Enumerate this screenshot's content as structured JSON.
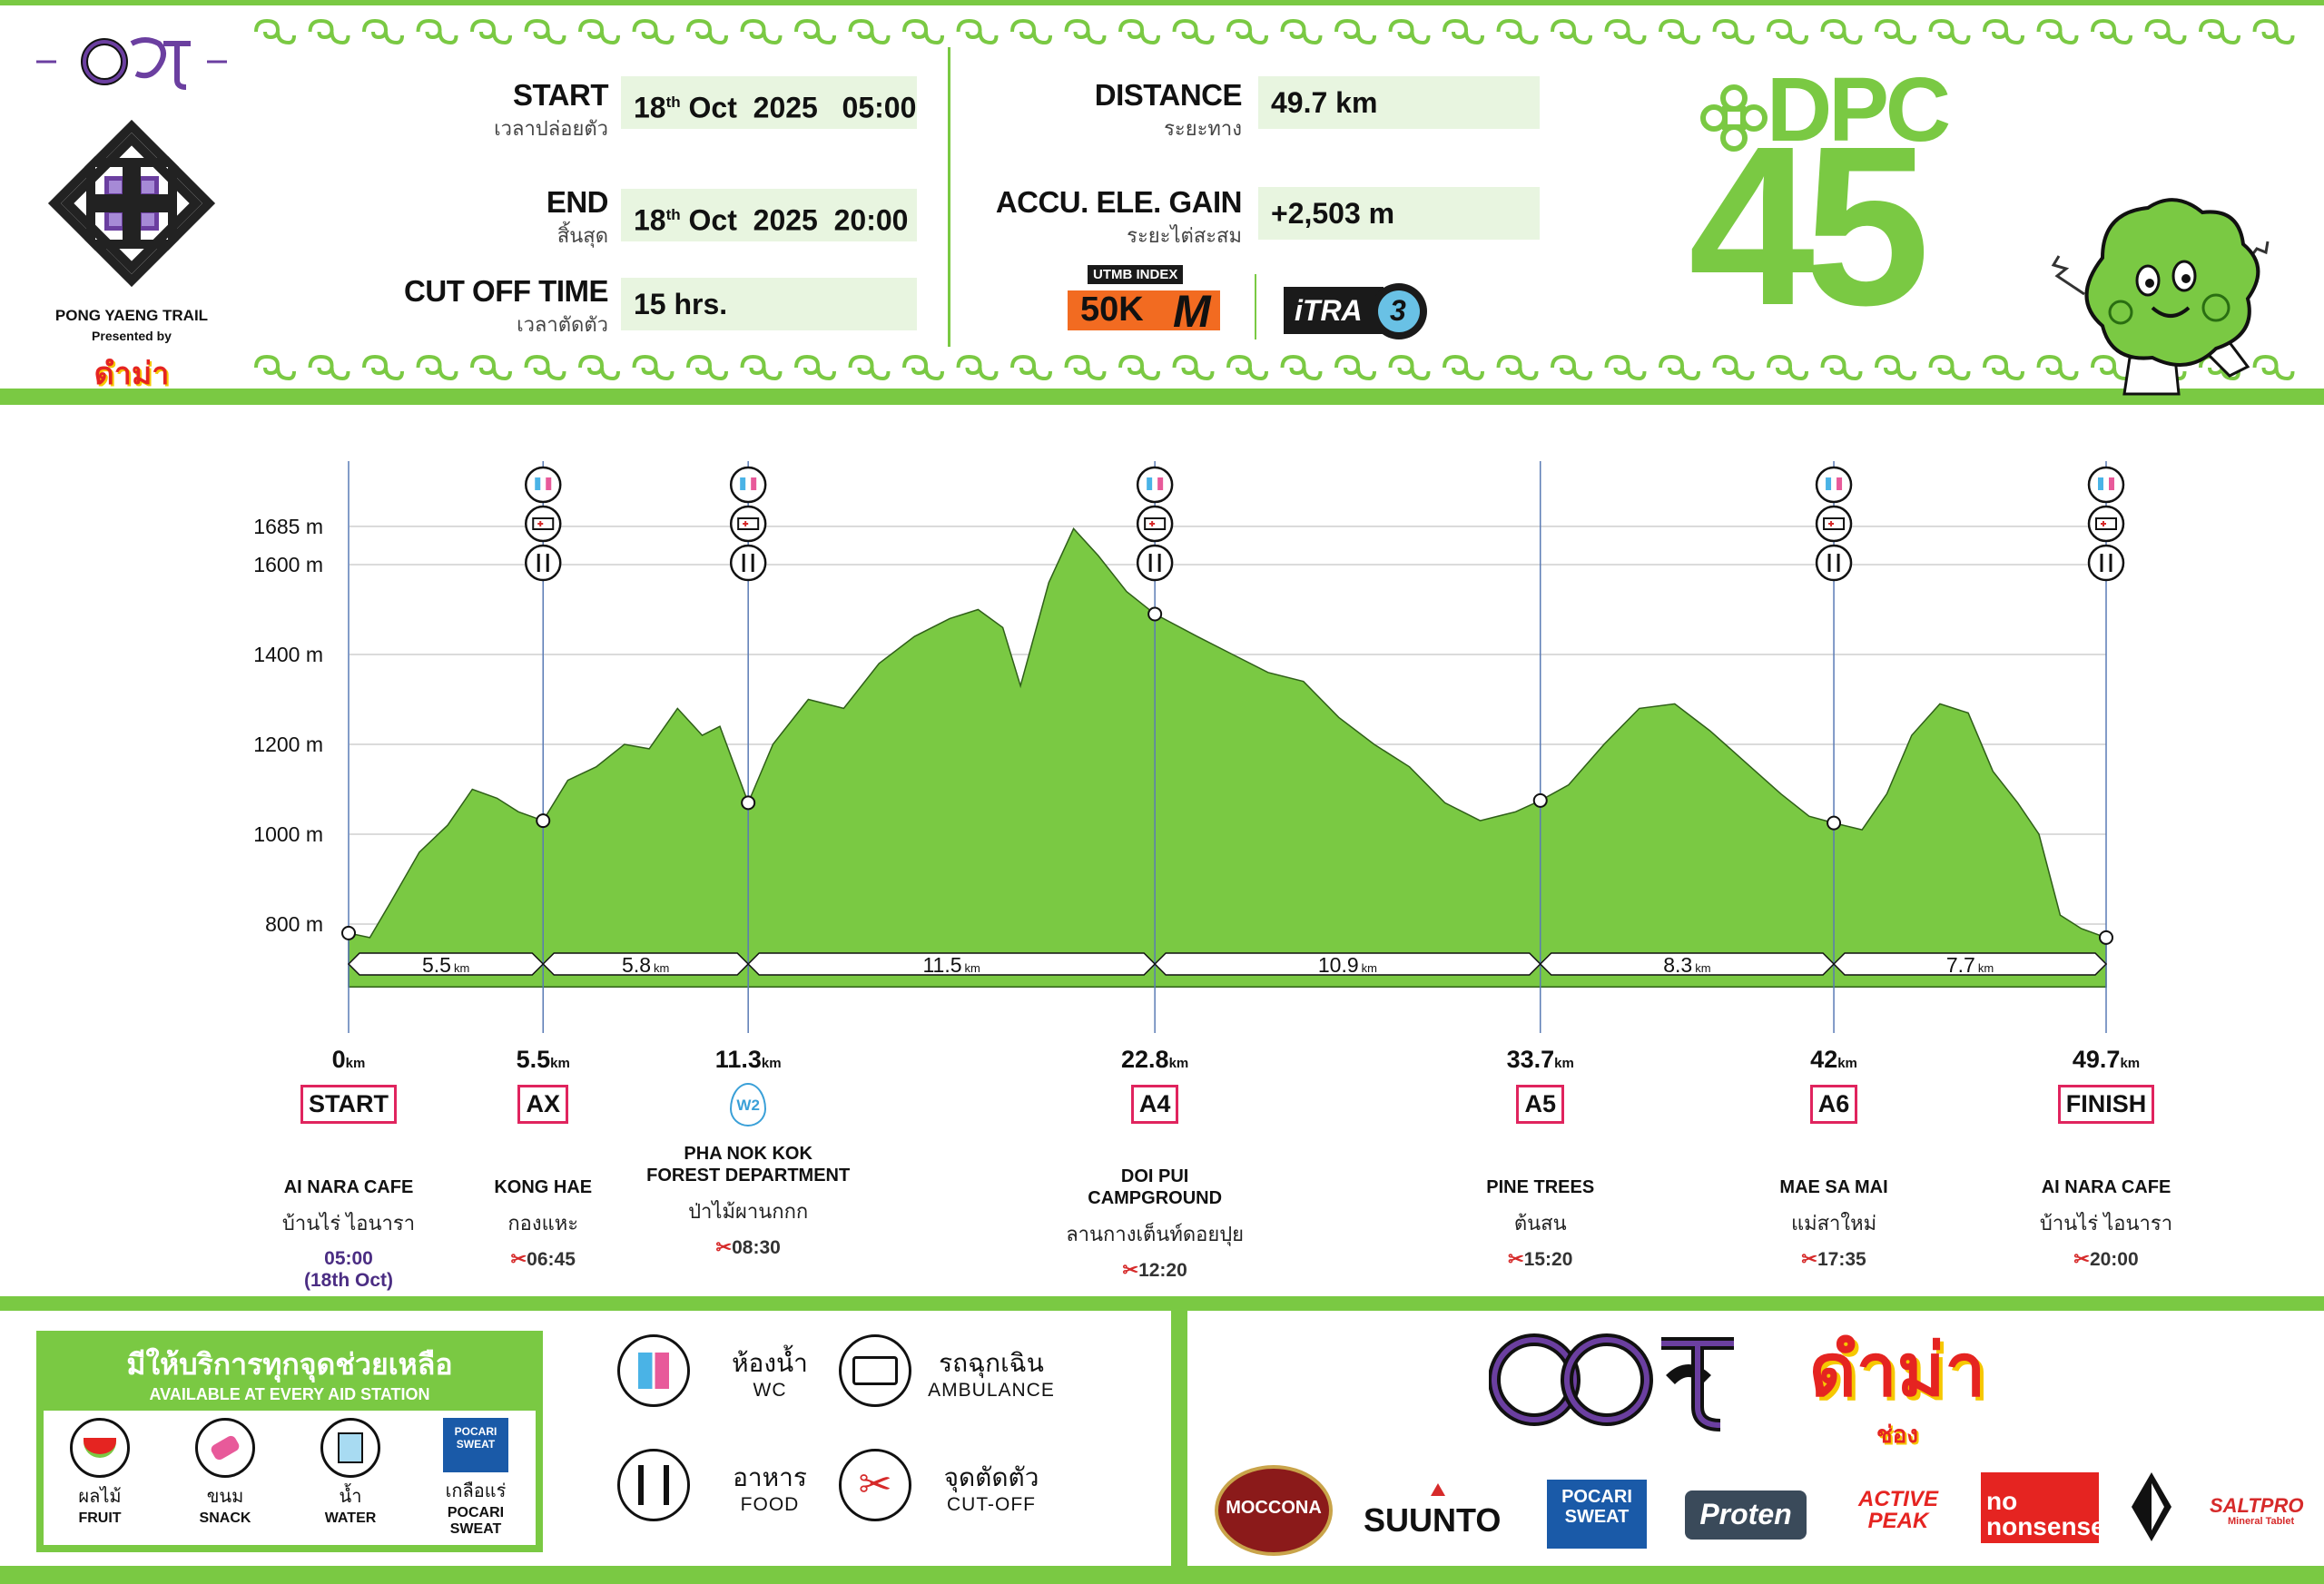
{
  "event": {
    "logo_text": "PONG YAENG TRAIL",
    "presented_by": "Presented by",
    "brand_script": "ดำม่า",
    "race_code_top": "DPC",
    "race_code_num": "45"
  },
  "info": {
    "start": {
      "label": "START",
      "label_th": "เวลาปล่อยตัว",
      "day": "18",
      "sup": "th",
      "rest": "Oct  2025   05:00"
    },
    "end": {
      "label": "END",
      "label_th": "สิ้นสุด",
      "day": "18",
      "sup": "th",
      "rest": "Oct  2025  20:00"
    },
    "cutoff": {
      "label": "CUT OFF TIME",
      "label_th": "เวลาตัดตัว",
      "value": "15 hrs."
    },
    "distance": {
      "label": "DISTANCE",
      "label_th": "ระยะทาง",
      "value": "49.7 km"
    },
    "gain": {
      "label": "ACCU. ELE. GAIN",
      "label_th": "ระยะไต่สะสม",
      "value": "+2,503 m"
    },
    "utmb_top": "UTMB INDEX",
    "utmb_val": "50K",
    "utmb_m": "M",
    "itra_text": "iTRA",
    "itra_num": "3"
  },
  "colors": {
    "green": "#7ac943",
    "dark_green": "#3f7f1f",
    "pink": "#e0245e",
    "purple": "#6b3fa0",
    "red": "#d62a2a"
  },
  "chart_data": {
    "type": "area",
    "xlabel": "",
    "ylabel": "",
    "xlim": [
      0,
      49.7
    ],
    "ylim": [
      660,
      1750
    ],
    "yticks": [
      800,
      1000,
      1200,
      1400,
      1600,
      1685
    ],
    "ytick_labels": [
      "800 m",
      "1000 m",
      "1200 m",
      "1400 m",
      "1600 m",
      "1685 m"
    ],
    "profile_x": [
      0,
      0.6,
      1.2,
      2.0,
      2.8,
      3.5,
      4.2,
      4.8,
      5.5,
      6.2,
      7.0,
      7.8,
      8.5,
      9.3,
      10.0,
      10.5,
      11.3,
      12.0,
      13.0,
      14.0,
      15.0,
      16.0,
      17.0,
      17.8,
      18.5,
      19.0,
      19.8,
      20.5,
      21.2,
      22.0,
      22.8,
      24.0,
      25.0,
      26.0,
      27.0,
      28.0,
      29.0,
      30.0,
      31.0,
      32.0,
      33.0,
      33.7,
      34.5,
      35.5,
      36.5,
      37.5,
      38.5,
      39.5,
      40.5,
      41.3,
      42.0,
      42.8,
      43.5,
      44.2,
      45.0,
      45.8,
      46.5,
      47.2,
      47.8,
      48.4,
      49.0,
      49.7
    ],
    "profile_y": [
      780,
      770,
      850,
      960,
      1020,
      1100,
      1080,
      1050,
      1030,
      1120,
      1150,
      1200,
      1190,
      1280,
      1220,
      1240,
      1070,
      1200,
      1300,
      1280,
      1380,
      1440,
      1480,
      1500,
      1460,
      1330,
      1560,
      1680,
      1620,
      1540,
      1490,
      1440,
      1400,
      1360,
      1340,
      1260,
      1200,
      1150,
      1070,
      1030,
      1050,
      1075,
      1110,
      1200,
      1280,
      1290,
      1230,
      1160,
      1090,
      1040,
      1025,
      1010,
      1090,
      1220,
      1290,
      1270,
      1140,
      1070,
      1000,
      820,
      790,
      770
    ],
    "checkpoints": [
      {
        "km": 0,
        "elev": 780
      },
      {
        "km": 5.5,
        "elev": 1030
      },
      {
        "km": 11.3,
        "elev": 1070
      },
      {
        "km": 22.8,
        "elev": 1490
      },
      {
        "km": 33.7,
        "elev": 1075
      },
      {
        "km": 42,
        "elev": 1025
      },
      {
        "km": 49.7,
        "elev": 770
      }
    ],
    "segments": [
      {
        "from": 0,
        "to": 5.5,
        "label": "5.5",
        "unit": "km"
      },
      {
        "from": 5.5,
        "to": 11.3,
        "label": "5.8",
        "unit": "km"
      },
      {
        "from": 11.3,
        "to": 22.8,
        "label": "11.5",
        "unit": "km"
      },
      {
        "from": 22.8,
        "to": 33.7,
        "label": "10.9",
        "unit": "km"
      },
      {
        "from": 33.7,
        "to": 42,
        "label": "8.3",
        "unit": "km"
      },
      {
        "from": 42,
        "to": 49.7,
        "label": "7.7",
        "unit": "km"
      }
    ],
    "aid_icon_positions_km": [
      5.5,
      11.3,
      22.8,
      42,
      49.7
    ]
  },
  "checkpoints": [
    {
      "km": "0",
      "code": "START",
      "en": "AI NARA CAFE",
      "th": "บ้านไร่  ไอนารา",
      "time": "05:00",
      "time2": "(18th Oct)"
    },
    {
      "km": "5.5",
      "code": "AX",
      "en": "KONG HAE",
      "th": "กองแหะ",
      "time": "06:45"
    },
    {
      "km": "11.3",
      "code": "W2",
      "en": "PHA NOK KOK\nFOREST DEPARTMENT",
      "th": "ป่าไม้ผานกกก",
      "time": "08:30"
    },
    {
      "km": "22.8",
      "code": "A4",
      "en": "DOI PUI\nCAMPGROUND",
      "th": "ลานกางเต็นท์ดอยปุย",
      "time": "12:20"
    },
    {
      "km": "33.7",
      "code": "A5",
      "en": "PINE TREES",
      "th": "ต้นสน",
      "time": "15:20"
    },
    {
      "km": "42",
      "code": "A6",
      "en": "MAE SA MAI",
      "th": "แม่สาใหม่",
      "time": "17:35"
    },
    {
      "km": "49.7",
      "code": "FINISH",
      "en": "AI NARA CAFE",
      "th": "บ้านไร่  ไอนารา",
      "time": "20:00"
    }
  ],
  "km_unit": "km",
  "aid_station": {
    "title_th": "มีให้บริการทุกจุดช่วยเหลือ",
    "title_en": "AVAILABLE AT EVERY AID STATION",
    "items": [
      {
        "th": "ผลไม้",
        "en": "FRUIT"
      },
      {
        "th": "ขนม",
        "en": "SNACK"
      },
      {
        "th": "น้ำ",
        "en": "WATER"
      },
      {
        "th": "เกลือแร่",
        "en": "POCARI\nSWEAT"
      }
    ],
    "pocari_text": "POCARI SWEAT"
  },
  "legend": [
    {
      "th": "ห้องน้ำ",
      "en": "WC"
    },
    {
      "th": "รถฉุกเฉิน",
      "en": "AMBULANCE"
    },
    {
      "th": "อาหาร",
      "en": "FOOD"
    },
    {
      "th": "จุดตัดตัว",
      "en": "CUT-OFF"
    }
  ],
  "sponsors": {
    "brand_script": "ดำม่า",
    "brand_sub": "ช่อง",
    "moccona": "MOCCONA",
    "suunto": "SUUNTO",
    "pocari": "POCARI SWEAT",
    "proten": "Proten",
    "active": "ACTIVE PEAK",
    "nonsense": "no nonsense",
    "saltpro": "SALTPRO",
    "saltpro_sub": "Mineral Tablet"
  }
}
